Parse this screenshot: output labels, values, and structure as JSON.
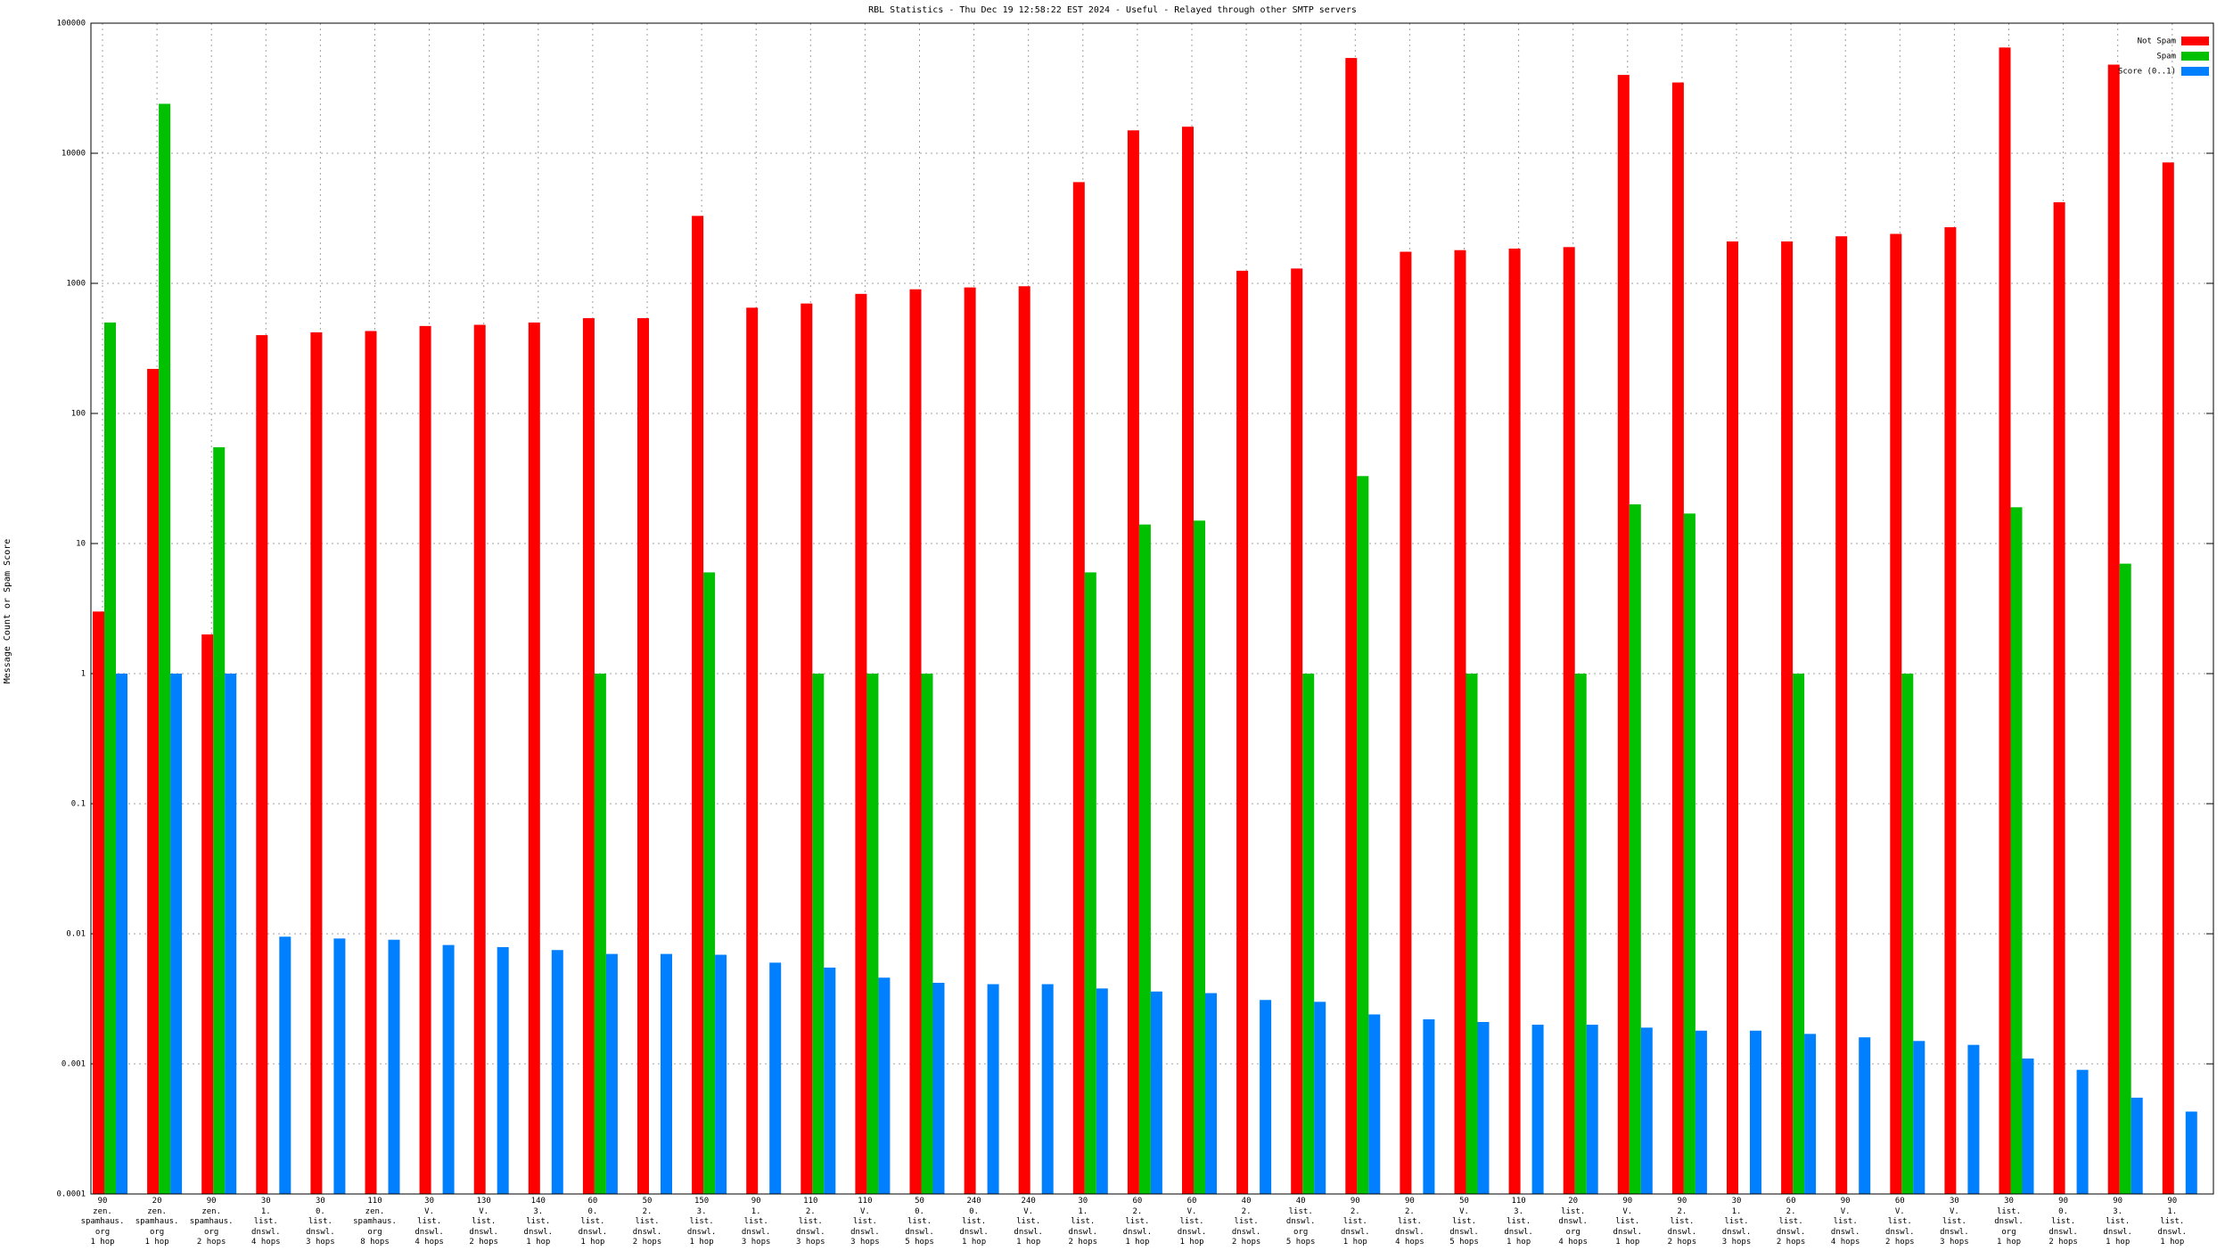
{
  "chart_data": {
    "type": "bar",
    "title": "RBL Statistics - Thu Dec 19 12:58:22 EST 2024 - Useful - Relayed through other SMTP servers",
    "y_label": "Message Count or Spam Score",
    "log_scale": true,
    "grid": true,
    "legend": "top-right",
    "ylim": [
      0.0001,
      100000
    ],
    "yticks": [
      0.0001,
      0.001,
      0.01,
      0.1,
      1,
      10,
      100,
      1000,
      10000,
      100000
    ],
    "categories": [
      "90\nzen.\nspamhaus.\norg\n1 hop",
      "20\nzen.\nspamhaus.\norg\n1 hop",
      "90\nzen.\nspamhaus.\norg\n2 hops",
      "30\n1.\nlist.\ndnswl.\n4 hops",
      "30\n0.\nlist.\ndnswl.\n3 hops",
      "110\nzen.\nspamhaus.\norg\n8 hops",
      "30\nV.\nlist.\ndnswl.\n4 hops",
      "130\nV.\nlist.\ndnswl.\n2 hops",
      "140\n3.\nlist.\ndnswl.\n1 hop",
      "60\n0.\nlist.\ndnswl.\n1 hop",
      "50\n2.\nlist.\ndnswl.\n2 hops",
      "150\n3.\nlist.\ndnswl.\n1 hop",
      "90\n1.\nlist.\ndnswl.\n3 hops",
      "110\n2.\nlist.\ndnswl.\n3 hops",
      "110\nV.\nlist.\ndnswl.\n3 hops",
      "50\n0.\nlist.\ndnswl.\n5 hops",
      "240\n0.\nlist.\ndnswl.\n1 hop",
      "240\nV.\nlist.\ndnswl.\n1 hop",
      "30\n1.\nlist.\ndnswl.\n2 hops",
      "60\n2.\nlist.\ndnswl.\n1 hop",
      "60\nV.\nlist.\ndnswl.\n1 hop",
      "40\n2.\nlist.\ndnswl.\n2 hops",
      "40\nlist.\ndnswl.\norg\n5 hops",
      "90\n2.\nlist.\ndnswl.\n1 hop",
      "90\n2.\nlist.\ndnswl.\n4 hops",
      "50\nV.\nlist.\ndnswl.\n5 hops",
      "110\n3.\nlist.\ndnswl.\n1 hop",
      "20\nlist.\ndnswl.\norg\n4 hops",
      "90\nV.\nlist.\ndnswl.\n1 hop",
      "90\n2.\nlist.\ndnswl.\n2 hops",
      "30\n1.\nlist.\ndnswl.\n3 hops",
      "60\n2.\nlist.\ndnswl.\n2 hops",
      "90\nV.\nlist.\ndnswl.\n4 hops",
      "60\nV.\nlist.\ndnswl.\n2 hops",
      "30\nV.\nlist.\ndnswl.\n3 hops",
      "30\nlist.\ndnswl.\norg\n1 hop",
      "90\n0.\nlist.\ndnswl.\n2 hops",
      "90\n3.\nlist.\ndnswl.\n1 hop",
      "90\n1.\nlist.\ndnswl.\n1 hop"
    ],
    "series": [
      {
        "name": "Not Spam",
        "color": "#ff0000",
        "values": [
          3,
          220,
          2,
          400,
          420,
          430,
          470,
          480,
          500,
          540,
          540,
          3300,
          650,
          700,
          830,
          900,
          930,
          950,
          6000,
          15000,
          16000,
          1250,
          1300,
          54000,
          1750,
          1800,
          1850,
          1900,
          40000,
          35000,
          2100,
          2100,
          2300,
          2400,
          2700,
          65000,
          4200,
          48000,
          8500
        ]
      },
      {
        "name": "Spam",
        "color": "#00c000",
        "values": [
          500,
          24000,
          55,
          null,
          null,
          null,
          null,
          null,
          null,
          1,
          null,
          6,
          null,
          1,
          1,
          1,
          null,
          null,
          6,
          14,
          15,
          null,
          1,
          33,
          null,
          1,
          null,
          1,
          20,
          17,
          null,
          1,
          null,
          1,
          null,
          19,
          null,
          7,
          null
        ]
      },
      {
        "name": "Score (0..1)",
        "color": "#0080ff",
        "values": [
          1,
          1,
          1,
          0.0095,
          0.0092,
          0.009,
          0.0082,
          0.0079,
          0.0075,
          0.007,
          0.007,
          0.0069,
          0.006,
          0.0055,
          0.0046,
          0.0042,
          0.0041,
          0.0041,
          0.0038,
          0.0036,
          0.0035,
          0.0031,
          0.003,
          0.0024,
          0.0022,
          0.0021,
          0.002,
          0.002,
          0.0019,
          0.0018,
          0.0018,
          0.0017,
          0.0016,
          0.0015,
          0.0014,
          0.0011,
          0.0009,
          0.00055,
          0.00043
        ]
      }
    ]
  }
}
